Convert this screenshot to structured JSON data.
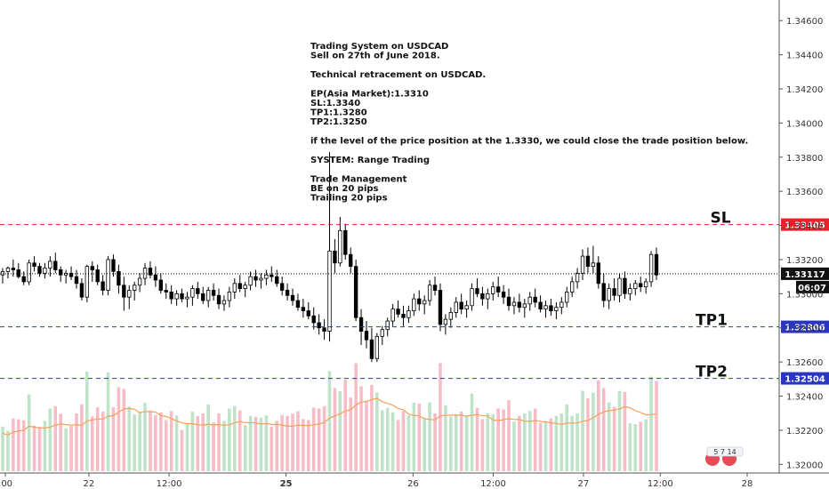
{
  "chart_data": {
    "type": "candlestick",
    "symbol": "USDCAD",
    "annotation": {
      "lines": [
        "Trading System on USDCAD",
        "Sell on 27th of June 2018.",
        "",
        "Technical retracement on USDCAD.",
        "",
        "EP(Asia Market):1.3310",
        "SL:1.3340",
        "TP1:1.3280",
        "TP2:1.3250",
        "",
        "if the level of the price position at the 1.3330, we could close the trade position below.",
        "",
        "SYSTEM: Range Trading",
        "",
        "Trade Management",
        "BE on 20 pips",
        "Trailing 20 pips"
      ]
    },
    "y_axis": {
      "min": 1.3196,
      "max": 1.347,
      "ticks": [
        "1.34600",
        "1.34400",
        "1.34200",
        "1.34000",
        "1.33800",
        "1.33600",
        "1.33400",
        "1.33200",
        "1.33000",
        "1.32800",
        "1.32600",
        "1.32400",
        "1.32200",
        "1.32000"
      ]
    },
    "x_axis": {
      "ticks": [
        {
          "label": ":00",
          "i": 0
        },
        {
          "label": "22",
          "i": 25
        },
        {
          "label": "12:00",
          "i": 49
        },
        {
          "label": "25",
          "i": 84
        },
        {
          "label": "26",
          "i": 122
        },
        {
          "label": "12:00",
          "i": 146
        },
        {
          "label": "27",
          "i": 173
        },
        {
          "label": "12:00",
          "i": 196
        },
        {
          "label": "28",
          "i": 222
        }
      ]
    },
    "levels": [
      {
        "label": "SL",
        "price": 1.33405,
        "price_label": "1.33405",
        "color": "#e8222a"
      },
      {
        "label": "TP1",
        "price": 1.32806,
        "price_label": "1.32806",
        "color": "#2a35c4"
      },
      {
        "label": "TP2",
        "price": 1.32504,
        "price_label": "1.32504",
        "color": "#2a35c4"
      }
    ],
    "current": {
      "price": 1.33117,
      "price_label": "1.33117",
      "countdown": "06:07"
    },
    "volume_ma_color": "#f5a05a",
    "colors": {
      "up": "#000000",
      "down": "#000000",
      "vol_up": "#bfe3c8",
      "vol_down": "#f7bcc5"
    },
    "flag_badge": {
      "label": "5 7 14"
    },
    "candles": [
      [
        1.3311,
        1.3315,
        1.3306,
        1.3313
      ],
      [
        1.3313,
        1.3316,
        1.3309,
        1.3315
      ],
      [
        1.3315,
        1.332,
        1.331,
        1.3314
      ],
      [
        1.3314,
        1.3318,
        1.3309,
        1.331
      ],
      [
        1.331,
        1.3313,
        1.3305,
        1.3307
      ],
      [
        1.3307,
        1.332,
        1.3305,
        1.3318
      ],
      [
        1.3318,
        1.3322,
        1.3313,
        1.3316
      ],
      [
        1.3316,
        1.3318,
        1.331,
        1.3312
      ],
      [
        1.3312,
        1.3318,
        1.3309,
        1.3315
      ],
      [
        1.3315,
        1.3322,
        1.331,
        1.3319
      ],
      [
        1.3319,
        1.3324,
        1.3312,
        1.3314
      ],
      [
        1.3314,
        1.3316,
        1.3307,
        1.3311
      ],
      [
        1.3311,
        1.3314,
        1.3306,
        1.3312
      ],
      [
        1.3312,
        1.3316,
        1.3308,
        1.331
      ],
      [
        1.331,
        1.3314,
        1.3303,
        1.3306
      ],
      [
        1.3306,
        1.3309,
        1.3296,
        1.3298
      ],
      [
        1.3298,
        1.3317,
        1.3295,
        1.3316
      ],
      [
        1.3316,
        1.3319,
        1.3307,
        1.3314
      ],
      [
        1.3314,
        1.3317,
        1.3305,
        1.3307
      ],
      [
        1.3307,
        1.3311,
        1.3299,
        1.3302
      ],
      [
        1.3302,
        1.3322,
        1.3299,
        1.332
      ],
      [
        1.332,
        1.3323,
        1.331,
        1.3313
      ],
      [
        1.3313,
        1.3317,
        1.33,
        1.3305
      ],
      [
        1.3305,
        1.331,
        1.329,
        1.3298
      ],
      [
        1.3298,
        1.3305,
        1.3291,
        1.3302
      ],
      [
        1.3302,
        1.3307,
        1.3296,
        1.3305
      ],
      [
        1.3305,
        1.3312,
        1.3301,
        1.3309
      ],
      [
        1.3309,
        1.3318,
        1.3305,
        1.3315
      ],
      [
        1.3315,
        1.3319,
        1.3309,
        1.3311
      ],
      [
        1.3311,
        1.3316,
        1.3304,
        1.3308
      ],
      [
        1.3308,
        1.3312,
        1.33,
        1.3302
      ],
      [
        1.3302,
        1.3306,
        1.3297,
        1.3301
      ],
      [
        1.3301,
        1.3305,
        1.3294,
        1.3297
      ],
      [
        1.3297,
        1.3302,
        1.3293,
        1.33
      ],
      [
        1.33,
        1.3303,
        1.3295,
        1.3297
      ],
      [
        1.3297,
        1.3301,
        1.3292,
        1.3298
      ],
      [
        1.3298,
        1.3305,
        1.3293,
        1.3303
      ],
      [
        1.3303,
        1.3307,
        1.3297,
        1.33
      ],
      [
        1.33,
        1.3304,
        1.3294,
        1.3296
      ],
      [
        1.3296,
        1.3304,
        1.3292,
        1.3302
      ],
      [
        1.3302,
        1.3306,
        1.3296,
        1.3299
      ],
      [
        1.3299,
        1.3303,
        1.3291,
        1.3294
      ],
      [
        1.3294,
        1.3299,
        1.329,
        1.3296
      ],
      [
        1.3296,
        1.3304,
        1.3292,
        1.3301
      ],
      [
        1.3301,
        1.3309,
        1.3297,
        1.3306
      ],
      [
        1.3306,
        1.3311,
        1.3301,
        1.3303
      ],
      [
        1.3303,
        1.3307,
        1.3298,
        1.3305
      ],
      [
        1.3305,
        1.3313,
        1.3302,
        1.331
      ],
      [
        1.331,
        1.3314,
        1.3304,
        1.3308
      ],
      [
        1.3308,
        1.3312,
        1.3303,
        1.3309
      ],
      [
        1.3309,
        1.3314,
        1.3305,
        1.3311
      ],
      [
        1.3311,
        1.3316,
        1.3307,
        1.331
      ],
      [
        1.331,
        1.3314,
        1.3304,
        1.3306
      ],
      [
        1.3306,
        1.331,
        1.3299,
        1.3302
      ],
      [
        1.3302,
        1.3306,
        1.3296,
        1.3299
      ],
      [
        1.3299,
        1.3303,
        1.3293,
        1.3296
      ],
      [
        1.3296,
        1.33,
        1.329,
        1.3292
      ],
      [
        1.3292,
        1.3297,
        1.3286,
        1.329
      ],
      [
        1.329,
        1.3295,
        1.3285,
        1.3287
      ],
      [
        1.3287,
        1.3292,
        1.3279,
        1.3283
      ],
      [
        1.3283,
        1.3288,
        1.3276,
        1.328
      ],
      [
        1.328,
        1.3285,
        1.3273,
        1.3278
      ],
      [
        1.3278,
        1.3383,
        1.3272,
        1.3325
      ],
      [
        1.3325,
        1.3332,
        1.3312,
        1.3318
      ],
      [
        1.3318,
        1.3345,
        1.3316,
        1.3337
      ],
      [
        1.3337,
        1.3341,
        1.332,
        1.3323
      ],
      [
        1.3323,
        1.3327,
        1.3312,
        1.3316
      ],
      [
        1.3316,
        1.332,
        1.3284,
        1.3286
      ],
      [
        1.3286,
        1.3291,
        1.327,
        1.3278
      ],
      [
        1.3278,
        1.3284,
        1.3268,
        1.3273
      ],
      [
        1.3273,
        1.328,
        1.326,
        1.3262
      ],
      [
        1.3262,
        1.3277,
        1.326,
        1.3275
      ],
      [
        1.3275,
        1.3281,
        1.327,
        1.3279
      ],
      [
        1.3279,
        1.3286,
        1.3275,
        1.3284
      ],
      [
        1.3284,
        1.3294,
        1.3281,
        1.3291
      ],
      [
        1.3291,
        1.3296,
        1.3286,
        1.3288
      ],
      [
        1.3288,
        1.3293,
        1.3281,
        1.3286
      ],
      [
        1.3286,
        1.3293,
        1.3283,
        1.329
      ],
      [
        1.329,
        1.33,
        1.3287,
        1.3297
      ],
      [
        1.3297,
        1.3302,
        1.329,
        1.3294
      ],
      [
        1.3294,
        1.3299,
        1.3288,
        1.3296
      ],
      [
        1.3296,
        1.3308,
        1.3293,
        1.3305
      ],
      [
        1.3305,
        1.331,
        1.3299,
        1.3302
      ],
      [
        1.3302,
        1.3306,
        1.3278,
        1.3282
      ]
    ],
    "candle_x": {
      "start": 4,
      "step": 3.35
    },
    "extra_candles_note": "",
    "volumes": []
  }
}
